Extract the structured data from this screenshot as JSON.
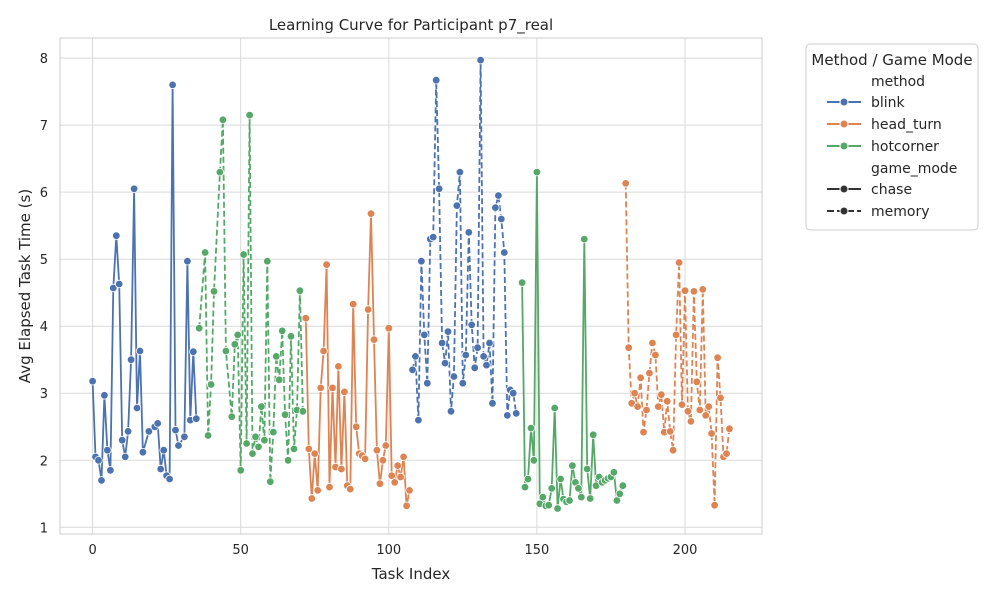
{
  "chart_data": {
    "type": "line",
    "title": "Learning Curve for Participant p7_real",
    "xlabel": "Task Index",
    "ylabel": "Avg Elapsed Task Time (s)",
    "xlim": [
      -11,
      226
    ],
    "ylim": [
      0.9,
      8.3
    ],
    "xticks": [
      0,
      50,
      100,
      150,
      200
    ],
    "yticks": [
      1,
      2,
      3,
      4,
      5,
      6,
      7,
      8
    ],
    "grid": true,
    "legend": {
      "title": "Method / Game Mode",
      "placement": "outside-top-right",
      "method_header": "method",
      "game_mode_header": "game_mode",
      "method_entries": [
        {
          "label": "blink",
          "color": "#4c72b0"
        },
        {
          "label": "head_turn",
          "color": "#dd8452"
        },
        {
          "label": "hotcorner",
          "color": "#55a868"
        }
      ],
      "game_mode_entries": [
        {
          "label": "chase",
          "dash": "solid"
        },
        {
          "label": "memory",
          "dash": "dashed"
        }
      ]
    },
    "series": [
      {
        "method": "blink",
        "game_mode": "chase",
        "color": "#4c72b0",
        "dash": "solid",
        "x": [
          0,
          1,
          2,
          3,
          4,
          5,
          6,
          7,
          8,
          9,
          10,
          11,
          12,
          13,
          14,
          15,
          16,
          17,
          19,
          21,
          22,
          23,
          24,
          25,
          26,
          27,
          28,
          29,
          31,
          32,
          33,
          34,
          35
        ],
        "y": [
          3.18,
          2.05,
          2.0,
          1.7,
          2.97,
          2.15,
          1.85,
          4.57,
          5.35,
          4.63,
          2.3,
          2.05,
          2.43,
          3.5,
          6.05,
          2.78,
          3.63,
          2.12,
          2.43,
          2.5,
          2.55,
          1.87,
          2.15,
          1.77,
          1.72,
          7.6,
          2.45,
          2.22,
          2.35,
          4.97,
          2.6,
          3.62,
          2.62
        ]
      },
      {
        "method": "hotcorner",
        "game_mode": "memory",
        "color": "#55a868",
        "dash": "dashed",
        "x": [
          36,
          38,
          39,
          40,
          41,
          43,
          44,
          45,
          47,
          48,
          49,
          50,
          51,
          52,
          53,
          54,
          55,
          56,
          57,
          58,
          59,
          60,
          61,
          62,
          63,
          64,
          65,
          66,
          67,
          68,
          69,
          70,
          71
        ],
        "y": [
          3.97,
          5.1,
          2.37,
          3.13,
          4.52,
          6.3,
          7.08,
          3.63,
          2.65,
          3.73,
          3.87,
          1.85,
          5.07,
          2.25,
          7.15,
          2.1,
          2.35,
          2.2,
          2.8,
          2.3,
          4.97,
          1.68,
          2.42,
          3.55,
          3.2,
          3.93,
          2.68,
          2.0,
          3.85,
          2.17,
          2.75,
          4.53,
          2.73
        ]
      },
      {
        "method": "head_turn",
        "game_mode": "chase",
        "color": "#dd8452",
        "dash": "solid",
        "x": [
          72,
          73,
          74,
          75,
          76,
          77,
          78,
          79,
          80,
          81,
          82,
          83,
          84,
          85,
          86,
          87,
          88,
          89,
          90,
          91,
          92,
          93,
          94,
          95,
          96,
          97,
          98,
          99,
          100,
          101,
          102,
          103,
          104,
          105,
          106,
          107
        ],
        "y": [
          4.12,
          2.17,
          1.43,
          2.1,
          1.55,
          3.08,
          3.63,
          4.92,
          1.6,
          3.08,
          1.9,
          3.4,
          1.87,
          3.02,
          1.62,
          1.57,
          4.33,
          2.5,
          2.1,
          2.07,
          2.02,
          4.25,
          5.68,
          3.8,
          2.15,
          1.65,
          2.0,
          2.22,
          3.97,
          1.77,
          1.67,
          1.92,
          1.75,
          2.05,
          1.32,
          1.55
        ]
      },
      {
        "method": "blink",
        "game_mode": "memory",
        "color": "#4c72b0",
        "dash": "dashed",
        "x": [
          108,
          109,
          110,
          111,
          112,
          113,
          114,
          115,
          116,
          117,
          118,
          119,
          120,
          121,
          122,
          123,
          124,
          125,
          126,
          127,
          128,
          129,
          130,
          131,
          132,
          133,
          134,
          135,
          136,
          137,
          138,
          139,
          140,
          141,
          142,
          143
        ],
        "y": [
          3.35,
          3.55,
          2.6,
          4.97,
          3.87,
          3.15,
          5.3,
          5.33,
          7.67,
          6.05,
          3.75,
          3.45,
          3.92,
          2.73,
          3.25,
          5.8,
          6.3,
          3.15,
          3.57,
          5.4,
          4.02,
          3.38,
          3.68,
          7.97,
          3.55,
          3.42,
          3.75,
          2.85,
          5.77,
          5.95,
          5.6,
          5.1,
          2.67,
          3.05,
          3.0,
          2.7
        ]
      },
      {
        "method": "hotcorner",
        "game_mode": "chase",
        "color": "#55a868",
        "dash": "solid",
        "x": [
          145,
          146,
          147,
          148,
          149,
          150,
          151,
          152,
          153,
          154,
          155,
          156,
          157,
          158,
          159,
          160,
          161,
          162,
          163,
          164,
          165,
          166,
          167,
          168,
          169,
          170,
          171,
          172,
          173,
          174,
          175,
          176,
          177,
          178,
          179
        ],
        "y": [
          4.65,
          1.6,
          1.72,
          2.48,
          2.0,
          6.3,
          1.35,
          1.45,
          1.32,
          1.33,
          1.58,
          2.78,
          1.28,
          1.72,
          1.42,
          1.38,
          1.4,
          1.92,
          1.67,
          1.58,
          1.45,
          5.3,
          1.87,
          1.43,
          2.38,
          1.62,
          1.75,
          1.67,
          1.7,
          1.73,
          1.75,
          1.82,
          1.4,
          1.5,
          1.62
        ]
      },
      {
        "method": "head_turn",
        "game_mode": "memory",
        "color": "#dd8452",
        "dash": "dashed",
        "x": [
          180,
          181,
          182,
          183,
          184,
          185,
          186,
          187,
          188,
          189,
          190,
          191,
          192,
          193,
          194,
          195,
          196,
          197,
          198,
          199,
          200,
          201,
          202,
          203,
          204,
          205,
          206,
          207,
          208,
          209,
          210,
          211,
          212,
          213,
          214,
          215
        ],
        "y": [
          6.13,
          3.68,
          2.85,
          3.0,
          2.8,
          3.23,
          2.42,
          2.75,
          3.3,
          3.75,
          3.57,
          2.8,
          2.98,
          2.42,
          2.88,
          2.43,
          2.15,
          3.87,
          4.95,
          2.83,
          4.53,
          2.73,
          2.58,
          4.52,
          3.17,
          2.75,
          4.55,
          2.67,
          2.8,
          2.4,
          1.33,
          3.53,
          2.93,
          2.05,
          2.1,
          2.47
        ]
      }
    ]
  }
}
